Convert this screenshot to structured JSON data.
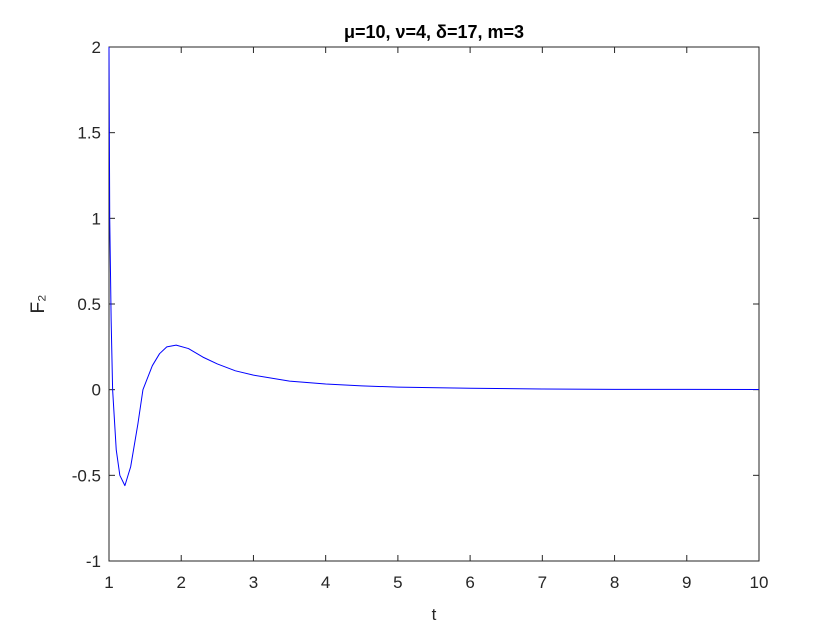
{
  "chart_data": {
    "type": "line",
    "title": "μ=10, ν=4, δ=17,  m=3",
    "xlabel": "t",
    "ylabel": "F₂",
    "x": [
      1,
      1.01,
      1.03,
      1.05,
      1.1,
      1.15,
      1.22,
      1.3,
      1.4,
      1.47,
      1.6,
      1.7,
      1.8,
      1.93,
      2.1,
      2.3,
      2.5,
      2.75,
      3,
      3.5,
      4,
      4.5,
      5,
      6,
      7,
      8,
      9,
      10
    ],
    "series": [
      {
        "color": "#0000ff",
        "values": [
          2,
          1.0,
          0.4,
          0.0,
          -0.35,
          -0.5,
          -0.56,
          -0.45,
          -0.2,
          0.0,
          0.14,
          0.21,
          0.25,
          0.26,
          0.24,
          0.19,
          0.15,
          0.11,
          0.085,
          0.05,
          0.033,
          0.022,
          0.015,
          0.008,
          0.004,
          0.002,
          0.0015,
          0.001
        ]
      }
    ],
    "xlim": [
      1,
      10
    ],
    "ylim": [
      -1,
      2
    ],
    "xticks": [
      1,
      2,
      3,
      4,
      5,
      6,
      7,
      8,
      9,
      10
    ],
    "yticks": [
      -1,
      -0.5,
      0,
      0.5,
      1,
      1.5,
      2
    ]
  }
}
